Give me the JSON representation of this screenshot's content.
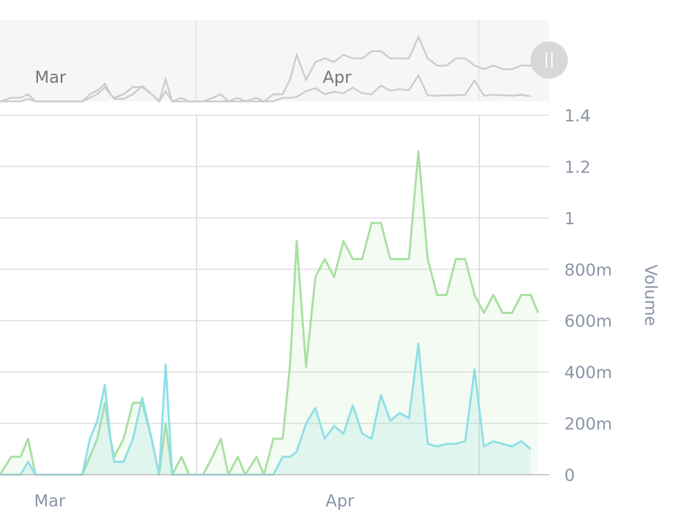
{
  "chart_data": {
    "type": "area",
    "xlabel": "",
    "ylabel": "Volume",
    "x_unit": "days since 1 Mar",
    "ylim": [
      0,
      1.4
    ],
    "y_ticks": [
      {
        "value": 0,
        "label": "0"
      },
      {
        "value": 0.2,
        "label": "200m"
      },
      {
        "value": 0.4,
        "label": "400m"
      },
      {
        "value": 0.6,
        "label": "600m"
      },
      {
        "value": 0.8,
        "label": "800m"
      },
      {
        "value": 1.0,
        "label": "1"
      },
      {
        "value": 1.2,
        "label": "1.2"
      },
      {
        "value": 1.4,
        "label": "1.4"
      }
    ],
    "x_ticks": [
      {
        "value": 0,
        "label": "Mar"
      },
      {
        "value": 31,
        "label": "Apr"
      }
    ],
    "navigator_labels": [
      "Mar",
      "Apr"
    ],
    "grid": true,
    "colors": {
      "series_a": "#a8e0a0",
      "series_b": "#8fdfe6"
    },
    "series": [
      {
        "name": "",
        "color": "#a8e0a0",
        "points": [
          [
            -6.2,
            0
          ],
          [
            -5,
            0.07
          ],
          [
            -4,
            0.07
          ],
          [
            -3.2,
            0.14
          ],
          [
            -2.4,
            0
          ],
          [
            -1,
            0
          ],
          [
            1,
            0
          ],
          [
            2.6,
            0
          ],
          [
            3.4,
            0.07
          ],
          [
            4.2,
            0.14
          ],
          [
            5,
            0.28
          ],
          [
            5.6,
            0.14
          ],
          [
            6,
            0.07
          ],
          [
            7,
            0.14
          ],
          [
            8,
            0.28
          ],
          [
            9,
            0.28
          ],
          [
            10,
            0.14
          ],
          [
            10.8,
            0
          ],
          [
            11.5,
            0.2
          ],
          [
            12.2,
            0
          ],
          [
            13.2,
            0.07
          ],
          [
            14,
            0
          ],
          [
            15.5,
            0
          ],
          [
            16.5,
            0.07
          ],
          [
            17.4,
            0.14
          ],
          [
            18.2,
            0
          ],
          [
            19.2,
            0.07
          ],
          [
            20,
            0
          ],
          [
            21.2,
            0.07
          ],
          [
            22,
            0
          ],
          [
            23,
            0.14
          ],
          [
            24,
            0.14
          ],
          [
            24.8,
            0.43
          ],
          [
            25.5,
            0.91
          ],
          [
            26.5,
            0.42
          ],
          [
            27.5,
            0.77
          ],
          [
            28.5,
            0.84
          ],
          [
            29.5,
            0.77
          ],
          [
            30.5,
            0.91
          ],
          [
            31.5,
            0.84
          ],
          [
            32.5,
            0.84
          ],
          [
            33.5,
            0.98
          ],
          [
            34.5,
            0.98
          ],
          [
            35.5,
            0.84
          ],
          [
            37.5,
            0.84
          ],
          [
            38.5,
            1.26
          ],
          [
            39.5,
            0.84
          ],
          [
            40.5,
            0.7
          ],
          [
            41.5,
            0.7
          ],
          [
            42.5,
            0.84
          ],
          [
            43.5,
            0.84
          ],
          [
            44.5,
            0.7
          ],
          [
            45.5,
            0.63
          ],
          [
            46.5,
            0.7
          ],
          [
            47.5,
            0.63
          ],
          [
            48.5,
            0.63
          ],
          [
            49.5,
            0.7
          ],
          [
            50.5,
            0.7
          ],
          [
            51.3,
            0.63
          ]
        ]
      },
      {
        "name": "",
        "color": "#8fdfe6",
        "points": [
          [
            -6.2,
            0
          ],
          [
            -4,
            0
          ],
          [
            -3.2,
            0.05
          ],
          [
            -2.4,
            0
          ],
          [
            -1,
            0
          ],
          [
            2.6,
            0
          ],
          [
            3.4,
            0.14
          ],
          [
            4.2,
            0.21
          ],
          [
            5,
            0.35
          ],
          [
            5.6,
            0.14
          ],
          [
            6,
            0.05
          ],
          [
            7,
            0.05
          ],
          [
            8,
            0.14
          ],
          [
            9,
            0.3
          ],
          [
            10,
            0.14
          ],
          [
            10.8,
            0
          ],
          [
            11.5,
            0.43
          ],
          [
            12.2,
            0
          ],
          [
            23,
            0
          ],
          [
            24,
            0.07
          ],
          [
            24.8,
            0.07
          ],
          [
            25.5,
            0.09
          ],
          [
            26.5,
            0.2
          ],
          [
            27.5,
            0.26
          ],
          [
            28.5,
            0.14
          ],
          [
            29.5,
            0.19
          ],
          [
            30.5,
            0.16
          ],
          [
            31.5,
            0.27
          ],
          [
            32.5,
            0.16
          ],
          [
            33.5,
            0.14
          ],
          [
            34.5,
            0.31
          ],
          [
            35.5,
            0.21
          ],
          [
            36.5,
            0.24
          ],
          [
            37.5,
            0.22
          ],
          [
            38.5,
            0.51
          ],
          [
            39.5,
            0.12
          ],
          [
            40.5,
            0.11
          ],
          [
            41.5,
            0.12
          ],
          [
            42.5,
            0.12
          ],
          [
            43.5,
            0.13
          ],
          [
            44.5,
            0.41
          ],
          [
            45.5,
            0.11
          ],
          [
            46.5,
            0.13
          ],
          [
            47.5,
            0.12
          ],
          [
            48.5,
            0.11
          ],
          [
            49.5,
            0.13
          ],
          [
            50.5,
            0.1
          ]
        ]
      }
    ]
  }
}
